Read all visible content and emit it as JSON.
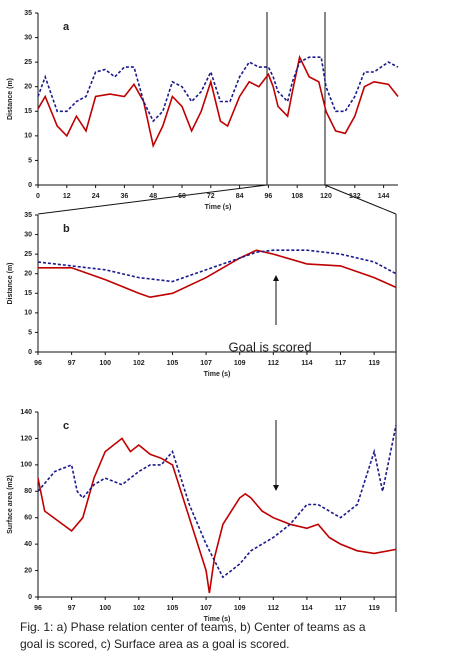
{
  "chart_data": [
    {
      "type": "line",
      "title": "a",
      "x_label": "Time (s)",
      "y_label": "Distance (m)",
      "xlim": [
        0,
        150
      ],
      "xticks": [
        0,
        12,
        24,
        36,
        48,
        60,
        72,
        84,
        96,
        108,
        120,
        132,
        144
      ],
      "ylim": [
        0,
        35
      ],
      "yticks": [
        0,
        5,
        10,
        15,
        20,
        25,
        30,
        35
      ],
      "x_tick_spacing": "linear",
      "grid": false,
      "series": [
        {
          "color": "#c00000",
          "dashed": false,
          "x": [
            0,
            3,
            8,
            12,
            16,
            20,
            24,
            30,
            36,
            40,
            44,
            48,
            52,
            56,
            60,
            64,
            68,
            72,
            76,
            79,
            84,
            88,
            92,
            96,
            98,
            100,
            104,
            106,
            109,
            113,
            117,
            120,
            124,
            128,
            132,
            136,
            140,
            146,
            150
          ],
          "values": [
            15.5,
            18,
            12,
            10,
            14,
            11,
            18,
            18.5,
            18,
            20.5,
            17,
            8,
            12,
            18,
            16,
            11,
            15,
            21,
            13,
            12,
            18,
            21,
            20,
            22.5,
            20,
            16,
            14,
            19,
            26,
            22,
            21,
            15,
            11,
            10.5,
            14,
            20,
            21,
            20.5,
            18
          ]
        },
        {
          "color": "#1a1a8c",
          "dashed": true,
          "x": [
            0,
            3,
            8,
            12,
            16,
            20,
            24,
            28,
            32,
            36,
            40,
            44,
            48,
            52,
            56,
            60,
            64,
            68,
            72,
            76,
            80,
            84,
            88,
            92,
            96,
            98,
            100,
            104,
            106,
            109,
            113,
            118,
            120,
            124,
            128,
            132,
            136,
            140,
            146,
            150
          ],
          "values": [
            18,
            22,
            15,
            15,
            17,
            18,
            23,
            23.5,
            22,
            24,
            24,
            17,
            13,
            15,
            21,
            20,
            17,
            19,
            23,
            17,
            17,
            22,
            25,
            24,
            24,
            22,
            19,
            17,
            21,
            25,
            26,
            26,
            20,
            15,
            15,
            18,
            23,
            23,
            25,
            24
          ]
        }
      ]
    },
    {
      "type": "line",
      "title": "b",
      "x_label": "Time (s)",
      "y_label": "Distance (m)",
      "annotation": "Goal is scored",
      "xlim": [
        96,
        120.3
      ],
      "xticks": [
        96,
        97,
        100,
        102,
        105,
        107,
        109,
        112,
        114,
        117,
        119
      ],
      "ylim": [
        0,
        35
      ],
      "yticks": [
        0,
        5,
        10,
        15,
        20,
        25,
        30,
        35
      ],
      "x_tick_spacing": "even",
      "grid": false,
      "series": [
        {
          "color": "#c00000",
          "dashed": false,
          "x": [
            96,
            97,
            100,
            102,
            103,
            105,
            107,
            109,
            110.5,
            112,
            114,
            117,
            119,
            120.3
          ],
          "values": [
            21.5,
            21.5,
            18.5,
            15,
            14,
            15,
            19,
            24,
            26,
            25,
            22.5,
            22,
            19,
            16.5
          ]
        },
        {
          "color": "#1a1a8c",
          "dashed": true,
          "x": [
            96,
            97,
            100,
            102,
            105,
            107,
            109,
            110.5,
            112,
            114,
            117,
            119,
            120.3
          ],
          "values": [
            23,
            22,
            21,
            19,
            18,
            21,
            24,
            25.5,
            26,
            26,
            25,
            23,
            20
          ]
        }
      ]
    },
    {
      "type": "line",
      "title": "c",
      "x_label": "Time (s)",
      "y_label": "Surface area (m2)",
      "xlim": [
        96,
        120.3
      ],
      "xticks": [
        96,
        97,
        100,
        102,
        105,
        107,
        109,
        112,
        114,
        117,
        119
      ],
      "ylim": [
        0,
        140
      ],
      "yticks": [
        0,
        20,
        40,
        60,
        80,
        100,
        120,
        140
      ],
      "x_tick_spacing": "even",
      "grid": false,
      "series": [
        {
          "color": "#c00000",
          "dashed": false,
          "x": [
            96,
            96.2,
            97,
            98,
            99,
            100,
            101,
            101.5,
            102,
            103,
            104,
            105,
            106,
            107,
            107.2,
            107.5,
            108,
            109,
            109.5,
            110,
            111,
            112,
            113,
            114,
            115,
            116,
            117,
            118,
            119,
            120.3
          ],
          "values": [
            90,
            65,
            50,
            60,
            90,
            110,
            120,
            110,
            115,
            108,
            105,
            100,
            60,
            20,
            3,
            30,
            55,
            75,
            78,
            75,
            65,
            60,
            55,
            52,
            55,
            45,
            40,
            35,
            33,
            36
          ]
        },
        {
          "color": "#1a1a8c",
          "dashed": true,
          "x": [
            96,
            96.5,
            97,
            97.5,
            98,
            99,
            100,
            101,
            102,
            103,
            104,
            105,
            106,
            107,
            108,
            109,
            110,
            111,
            112,
            113,
            114,
            115,
            116,
            117,
            118,
            119,
            119.5,
            120.3
          ],
          "values": [
            80,
            95,
            100,
            80,
            75,
            85,
            90,
            85,
            95,
            100,
            100,
            110,
            70,
            40,
            15,
            25,
            35,
            40,
            45,
            55,
            70,
            70,
            65,
            60,
            70,
            110,
            80,
            130
          ]
        }
      ]
    }
  ],
  "caption": [
    "Fig. 1: a) Phase relation center of teams, b) Center of teams as a",
    "goal is scored,  c) Surface area as a goal is scored."
  ]
}
